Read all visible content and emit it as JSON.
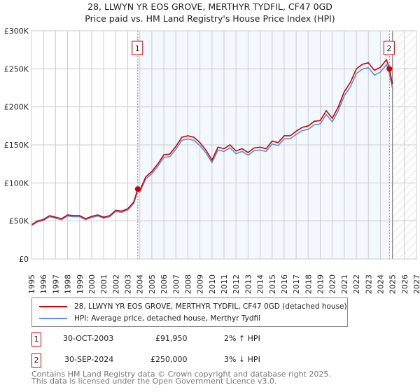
{
  "chart_data": {
    "type": "line",
    "title": "28, LLWYN YR EOS GROVE, MERTHYR TYDFIL, CF47 0GD",
    "subtitle": "Price paid vs. HM Land Registry's House Price Index (HPI)",
    "xlim": [
      1995,
      2027
    ],
    "ylim": [
      0,
      300000
    ],
    "y_ticks": [
      {
        "v": 0,
        "label": "£0"
      },
      {
        "v": 50000,
        "label": "£50K"
      },
      {
        "v": 100000,
        "label": "£100K"
      },
      {
        "v": 150000,
        "label": "£150K"
      },
      {
        "v": 200000,
        "label": "£200K"
      },
      {
        "v": 250000,
        "label": "£250K"
      },
      {
        "v": 300000,
        "label": "£300K"
      }
    ],
    "x_ticks": [
      "1995",
      "1996",
      "1997",
      "1998",
      "1999",
      "2000",
      "2001",
      "2002",
      "2003",
      "2004",
      "2005",
      "2006",
      "2007",
      "2008",
      "2009",
      "2010",
      "2011",
      "2012",
      "2013",
      "2014",
      "2015",
      "2016",
      "2017",
      "2018",
      "2019",
      "2020",
      "2021",
      "2022",
      "2023",
      "2024",
      "2025",
      "2026",
      "2027"
    ],
    "grid": true,
    "shaded_range": [
      2003.83,
      2024.75
    ],
    "future_hatch_from": 2025,
    "series": [
      {
        "name": "28, LLWYN YR EOS GROVE, MERTHYR TYDFIL, CF47 0GD (detached house)",
        "color": "#cc0000",
        "x": [
          1995,
          1995.5,
          1996,
          1996.5,
          1997,
          1997.5,
          1998,
          1998.5,
          1999,
          1999.5,
          2000,
          2000.5,
          2001,
          2001.5,
          2002,
          2002.5,
          2003,
          2003.5,
          2003.83,
          2004,
          2004.5,
          2005,
          2005.5,
          2006,
          2006.5,
          2007,
          2007.5,
          2008,
          2008.5,
          2009,
          2009.5,
          2010,
          2010.5,
          2011,
          2011.5,
          2012,
          2012.5,
          2013,
          2013.5,
          2014,
          2014.5,
          2015,
          2015.5,
          2016,
          2016.5,
          2017,
          2017.5,
          2018,
          2018.5,
          2019,
          2019.5,
          2020,
          2020.5,
          2021,
          2021.5,
          2022,
          2022.5,
          2023,
          2023.5,
          2024,
          2024.5,
          2024.75,
          2025
        ],
        "y": [
          45000,
          50000,
          52000,
          57000,
          55000,
          53000,
          58000,
          57000,
          57000,
          53000,
          56000,
          58000,
          55000,
          57000,
          64000,
          63000,
          66000,
          75000,
          92000,
          90000,
          108000,
          115000,
          125000,
          137000,
          138000,
          148000,
          160000,
          162000,
          160000,
          153000,
          143000,
          130000,
          147000,
          145000,
          150000,
          142000,
          145000,
          140000,
          146000,
          147000,
          145000,
          155000,
          153000,
          162000,
          162000,
          168000,
          173000,
          175000,
          181000,
          182000,
          195000,
          185000,
          200000,
          220000,
          232000,
          250000,
          256000,
          258000,
          248000,
          252000,
          262000,
          250000,
          230000
        ]
      },
      {
        "name": "HPI: Average price, detached house, Merthyr Tydfil",
        "color": "#5b8fd6"
      }
    ],
    "sales": [
      {
        "n": "1",
        "x": 2003.83,
        "y": 91950
      },
      {
        "n": "2",
        "x": 2024.75,
        "y": 250000
      }
    ]
  },
  "legend": {
    "red": "28, LLWYN YR EOS GROVE, MERTHYR TYDFIL, CF47 0GD (detached house)",
    "blue": "HPI: Average price, detached house, Merthyr Tydfil"
  },
  "table": [
    {
      "n": "1",
      "date": "30-OCT-2003",
      "price": "£91,950",
      "hpi": "2% ↑ HPI"
    },
    {
      "n": "2",
      "date": "30-SEP-2024",
      "price": "£250,000",
      "hpi": "3% ↓ HPI"
    }
  ],
  "footer": {
    "line1": "Contains HM Land Registry data © Crown copyright and database right 2025.",
    "line2": "This data is licensed under the Open Government Licence v3.0."
  }
}
